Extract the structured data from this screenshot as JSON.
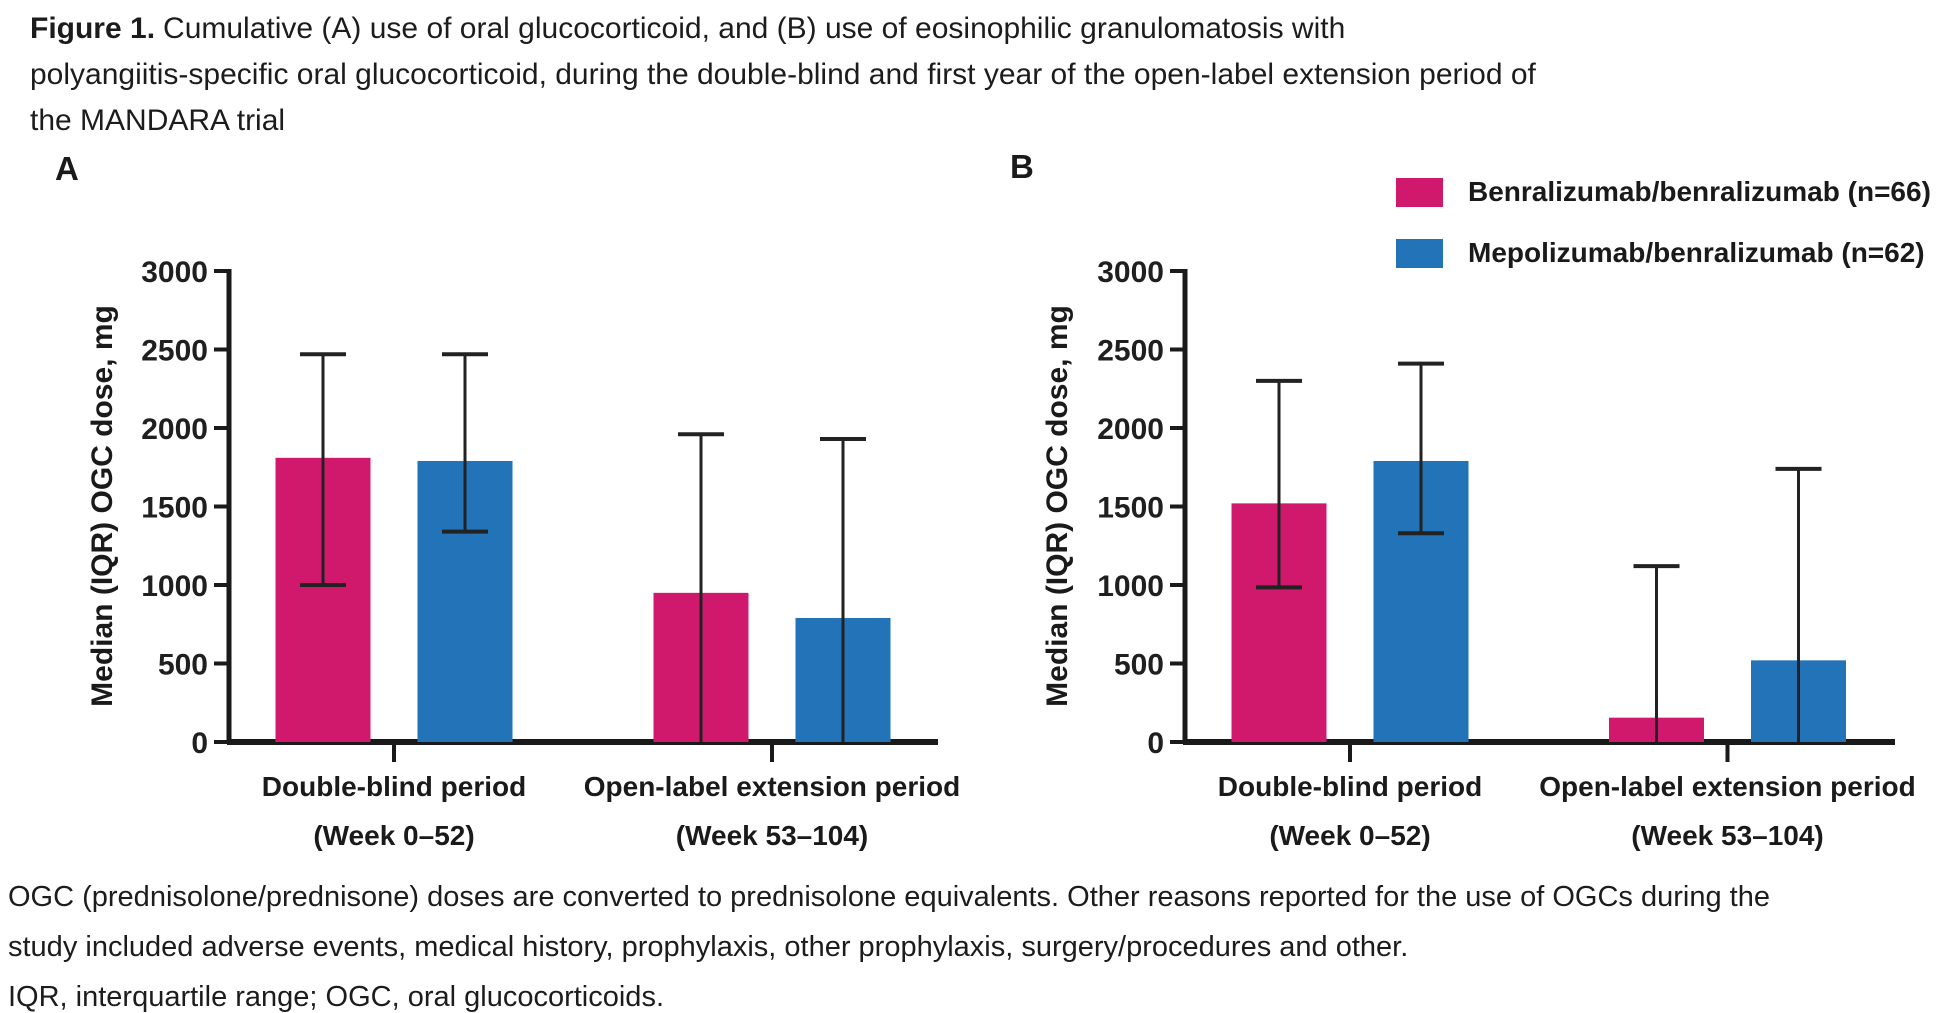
{
  "figure": {
    "label": "Figure 1.",
    "title_lines": [
      "Cumulative (A) use of oral glucocorticoid, and (B) use of eosinophilic granulomatosis with",
      "polyangiitis-specific oral glucocorticoid, during the double-blind and first year of the open-label extension period of",
      "the MANDARA trial"
    ]
  },
  "legend": {
    "items": [
      {
        "name": "benralizumab-swatch",
        "label": "Benralizumab/benralizumab (n=66)",
        "color": "#D0196C"
      },
      {
        "name": "mepolizumab-swatch",
        "label": "Mepolizumab/benralizumab (n=62)",
        "color": "#2273B7"
      }
    ]
  },
  "chart_data": [
    {
      "type": "bar",
      "panel": "A",
      "title": "Cumulative use of oral glucocorticoid",
      "ylabel": "Median (IQR) OGC dose, mg",
      "xlabel": "",
      "ylim": [
        0,
        3000
      ],
      "yticks": [
        0,
        500,
        1000,
        1500,
        2000,
        2500,
        3000
      ],
      "grid": false,
      "error_bars": "IQR",
      "categories": [
        {
          "line1": "Double-blind period",
          "line2": "(Week 0–52)"
        },
        {
          "line1": "Open-label extension period",
          "line2": "(Week 53–104)"
        }
      ],
      "series": [
        {
          "name": "Benralizumab/benralizumab (n=66)",
          "key": "benralizumab",
          "color": "#D0196C",
          "values": [
            1810,
            950
          ],
          "iqr_low": [
            1000,
            0
          ],
          "iqr_high": [
            2470,
            1960
          ]
        },
        {
          "name": "Mepolizumab/benralizumab (n=62)",
          "key": "mepolizumab",
          "color": "#2273B7",
          "values": [
            1790,
            790
          ],
          "iqr_low": [
            1340,
            0
          ],
          "iqr_high": [
            2470,
            1930
          ]
        }
      ]
    },
    {
      "type": "bar",
      "panel": "B",
      "title": "Cumulative use of EGPA-specific oral glucocorticoid",
      "ylabel": "Median (IQR) OGC dose, mg",
      "xlabel": "",
      "ylim": [
        0,
        3000
      ],
      "yticks": [
        0,
        500,
        1000,
        1500,
        2000,
        2500,
        3000
      ],
      "grid": false,
      "error_bars": "IQR",
      "categories": [
        {
          "line1": "Double-blind period",
          "line2": "(Week 0–52)"
        },
        {
          "line1": "Open-label extension period",
          "line2": "(Week 53–104)"
        }
      ],
      "series": [
        {
          "name": "Benralizumab/benralizumab (n=66)",
          "key": "benralizumab",
          "color": "#D0196C",
          "values": [
            1520,
            155
          ],
          "iqr_low": [
            985,
            0
          ],
          "iqr_high": [
            2300,
            1120
          ]
        },
        {
          "name": "Mepolizumab/benralizumab (n=62)",
          "key": "mepolizumab",
          "color": "#2273B7",
          "values": [
            1790,
            520
          ],
          "iqr_low": [
            1330,
            0
          ],
          "iqr_high": [
            2410,
            1740
          ]
        }
      ]
    }
  ],
  "footnote": {
    "lines": [
      "OGC (prednisolone/prednisone) doses are converted to prednisolone equivalents. Other reasons reported for the use of OGCs during the",
      "study included adverse events, medical history, prophylaxis, other prophylaxis, surgery/procedures and other.",
      "IQR, interquartile range; OGC, oral glucocorticoids."
    ]
  }
}
